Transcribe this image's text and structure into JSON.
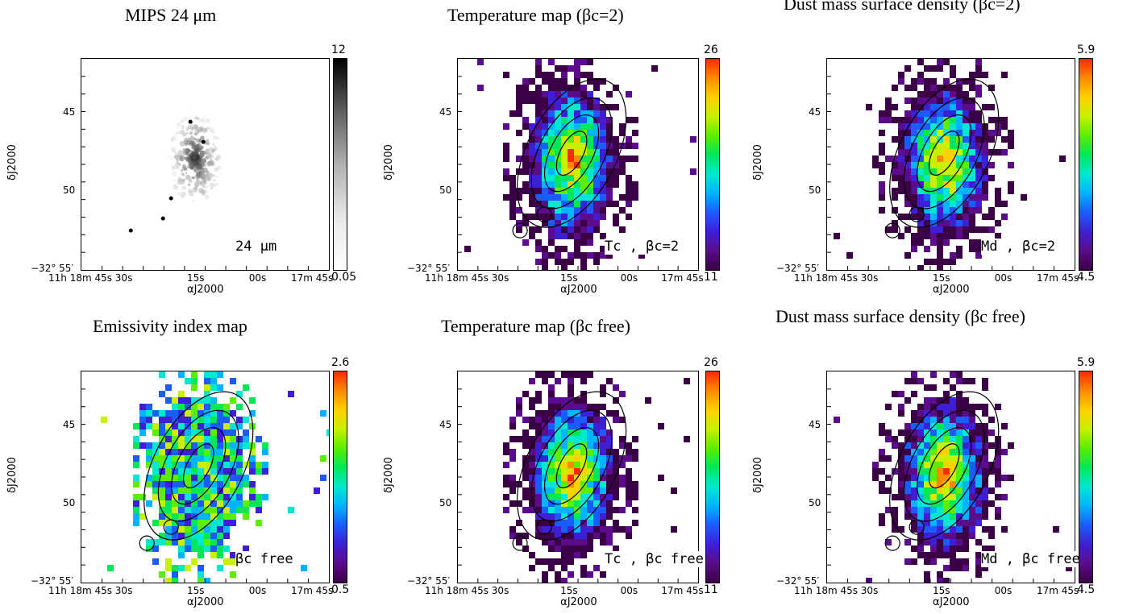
{
  "panels": [
    {
      "id": "p1",
      "title": "MIPS 24 μm",
      "inset": "24 μm",
      "cb_top": "12",
      "cb_bottom": "0.05",
      "cmap": "gray"
    },
    {
      "id": "p2",
      "title": "Temperature map (βc=2)",
      "inset": "Tc , βc=2",
      "cb_top": "26",
      "cb_bottom": "11",
      "cmap": "rainbow"
    },
    {
      "id": "p3",
      "title": "Dust mass surface density (βc=2)",
      "inset": "Md , βc=2",
      "cb_top": "5.9",
      "cb_bottom": "4.5",
      "cmap": "rainbow"
    },
    {
      "id": "p4",
      "title": "Emissivity index map",
      "inset": "βc free",
      "cb_top": "2.6",
      "cb_bottom": "0.5",
      "cmap": "rainbow"
    },
    {
      "id": "p5",
      "title": "Temperature map (βc free)",
      "inset": "Tc , βc free",
      "cb_top": "26",
      "cb_bottom": "11",
      "cmap": "rainbow"
    },
    {
      "id": "p6",
      "title": "Dust mass surface density (βc free)",
      "inset": "Md , βc free",
      "cb_top": "5.9",
      "cb_bottom": "4.5",
      "cmap": "rainbow"
    }
  ],
  "axes": {
    "ylabel": "δJ2000",
    "xlabel": "αJ2000",
    "yticks": [
      "45",
      "50",
      "−32° 55′"
    ],
    "xticks": [
      "11h 18m 45s 30s",
      "15s",
      "00s",
      "17m 45s"
    ]
  },
  "colors": {
    "frame": "#000000",
    "background": "#ffffff"
  }
}
